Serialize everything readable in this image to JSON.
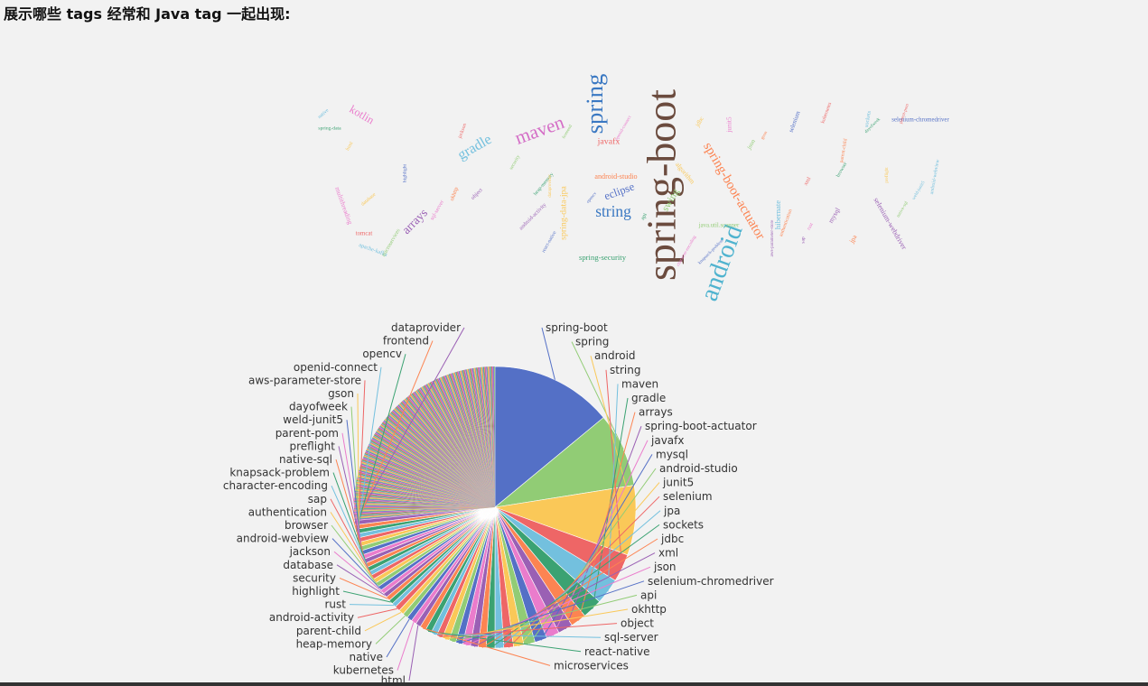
{
  "heading": "展示哪些 tags 经常和 Java tag 一起出现:",
  "palette": [
    "#5470c6",
    "#91cc75",
    "#fac858",
    "#ee6666",
    "#73c0de",
    "#3ba272",
    "#fc8452",
    "#9a60b4",
    "#ea7ccc"
  ],
  "chart_data": [
    {
      "type": "wordcloud",
      "title": "",
      "words": [
        {
          "text": "spring-boot",
          "weight": 100,
          "rot": -90
        },
        {
          "text": "android",
          "weight": 62,
          "rot": -70
        },
        {
          "text": "spring",
          "weight": 58,
          "rot": -90
        },
        {
          "text": "maven",
          "weight": 34,
          "rot": -20
        },
        {
          "text": "gradle",
          "weight": 26,
          "rot": -30
        },
        {
          "text": "string",
          "weight": 28,
          "rot": 0
        },
        {
          "text": "spring-boot-actuator",
          "weight": 24,
          "rot": 60
        },
        {
          "text": "arrays",
          "weight": 22,
          "rot": -45
        },
        {
          "text": "kotlin",
          "weight": 20,
          "rot": 30
        },
        {
          "text": "eclipse",
          "weight": 20,
          "rot": -20
        },
        {
          "text": "swing",
          "weight": 18,
          "rot": -60
        },
        {
          "text": "spring-data-jpa",
          "weight": 16,
          "rot": -90
        },
        {
          "text": "javafx",
          "weight": 16,
          "rot": 0
        },
        {
          "text": "hibernate",
          "weight": 14,
          "rot": -90
        },
        {
          "text": "spring-security",
          "weight": 14,
          "rot": 0
        },
        {
          "text": "android-studio",
          "weight": 13,
          "rot": 0
        },
        {
          "text": "selenium-webdriver",
          "weight": 13,
          "rot": 60
        },
        {
          "text": "multithreading",
          "weight": 12,
          "rot": 70
        },
        {
          "text": "selenium-chromedriver",
          "weight": 11,
          "rot": 0
        },
        {
          "text": "java.util.scanner",
          "weight": 11,
          "rot": 0
        },
        {
          "text": "algorithm",
          "weight": 12,
          "rot": 50
        },
        {
          "text": "tomcat",
          "weight": 11,
          "rot": 0
        },
        {
          "text": "apache-kafka",
          "weight": 10,
          "rot": 20
        },
        {
          "text": "spring-data",
          "weight": 9,
          "rot": 0
        },
        {
          "text": "jpa",
          "weight": 12,
          "rot": -60
        },
        {
          "text": "mysql",
          "weight": 12,
          "rot": -60
        },
        {
          "text": "junit5",
          "weight": 12,
          "rot": -90
        },
        {
          "text": "selenium",
          "weight": 11,
          "rot": -70
        },
        {
          "text": "json",
          "weight": 11,
          "rot": -60
        },
        {
          "text": "jdbc",
          "weight": 11,
          "rot": -60
        },
        {
          "text": "xml",
          "weight": 10,
          "rot": -60
        },
        {
          "text": "sockets",
          "weight": 10,
          "rot": -80
        },
        {
          "text": "api",
          "weight": 10,
          "rot": -60
        },
        {
          "text": "okhttp",
          "weight": 10,
          "rot": -70
        },
        {
          "text": "object",
          "weight": 10,
          "rot": -45
        },
        {
          "text": "sql-server",
          "weight": 10,
          "rot": -60
        },
        {
          "text": "react-native",
          "weight": 9,
          "rot": -60
        },
        {
          "text": "microservices",
          "weight": 10,
          "rot": -60
        },
        {
          "text": "html",
          "weight": 9,
          "rot": -60
        },
        {
          "text": "kubernetes",
          "weight": 9,
          "rot": -70
        },
        {
          "text": "native",
          "weight": 9,
          "rot": -40
        },
        {
          "text": "heap-memory",
          "weight": 9,
          "rot": -50
        },
        {
          "text": "parent-child",
          "weight": 9,
          "rot": -80
        },
        {
          "text": "android-activity",
          "weight": 10,
          "rot": -45
        },
        {
          "text": "rust",
          "weight": 9,
          "rot": -60
        },
        {
          "text": "highlight",
          "weight": 9,
          "rot": -90
        },
        {
          "text": "security",
          "weight": 9,
          "rot": -60
        },
        {
          "text": "database",
          "weight": 9,
          "rot": -40
        },
        {
          "text": "jackson",
          "weight": 9,
          "rot": -70
        },
        {
          "text": "android-webview",
          "weight": 9,
          "rot": -80
        },
        {
          "text": "browser",
          "weight": 9,
          "rot": -60
        },
        {
          "text": "authentication",
          "weight": 9,
          "rot": -70
        },
        {
          "text": "sap",
          "weight": 9,
          "rot": -90
        },
        {
          "text": "character-encoding",
          "weight": 8,
          "rot": -60
        },
        {
          "text": "knapsack-problem",
          "weight": 8,
          "rot": -45
        },
        {
          "text": "native-sql",
          "weight": 8,
          "rot": -60
        },
        {
          "text": "preflight",
          "weight": 8,
          "rot": -90
        },
        {
          "text": "parent-pom",
          "weight": 8,
          "rot": -70
        },
        {
          "text": "weld-junit5",
          "weight": 8,
          "rot": -60
        },
        {
          "text": "dayofweek",
          "weight": 8,
          "rot": -45
        },
        {
          "text": "gson",
          "weight": 8,
          "rot": -60
        },
        {
          "text": "aws-parameter-store",
          "weight": 8,
          "rot": -90
        },
        {
          "text": "openid-connect",
          "weight": 8,
          "rot": -60
        },
        {
          "text": "opencv",
          "weight": 8,
          "rot": -50
        },
        {
          "text": "frontend",
          "weight": 8,
          "rot": -60
        },
        {
          "text": "dataprovider",
          "weight": 8,
          "rot": -90
        }
      ]
    },
    {
      "type": "pie",
      "title": "",
      "slices": [
        {
          "name": "spring-boot",
          "value": 14.0
        },
        {
          "name": "spring",
          "value": 8.5
        },
        {
          "name": "android",
          "value": 8.0
        },
        {
          "name": "string",
          "value": 3.2
        },
        {
          "name": "maven",
          "value": 3.0
        },
        {
          "name": "gradle",
          "value": 2.3
        },
        {
          "name": "arrays",
          "value": 1.8
        },
        {
          "name": "spring-boot-actuator",
          "value": 1.7
        },
        {
          "name": "javafx",
          "value": 1.5
        },
        {
          "name": "mysql",
          "value": 1.4
        },
        {
          "name": "android-studio",
          "value": 1.3
        },
        {
          "name": "junit5",
          "value": 1.2
        },
        {
          "name": "selenium",
          "value": 1.1
        },
        {
          "name": "jpa",
          "value": 1.0
        },
        {
          "name": "sockets",
          "value": 1.0
        },
        {
          "name": "jdbc",
          "value": 0.9
        },
        {
          "name": "xml",
          "value": 0.9
        },
        {
          "name": "json",
          "value": 0.9
        },
        {
          "name": "selenium-chromedriver",
          "value": 0.8
        },
        {
          "name": "api",
          "value": 0.8
        },
        {
          "name": "okhttp",
          "value": 0.8
        },
        {
          "name": "object",
          "value": 0.7
        },
        {
          "name": "sql-server",
          "value": 0.7
        },
        {
          "name": "react-native",
          "value": 0.7
        },
        {
          "name": "microservices",
          "value": 0.7
        },
        {
          "name": "html",
          "value": 0.6
        },
        {
          "name": "kubernetes",
          "value": 0.6
        },
        {
          "name": "native",
          "value": 0.6
        },
        {
          "name": "heap-memory",
          "value": 0.6
        },
        {
          "name": "parent-child",
          "value": 0.6
        },
        {
          "name": "android-activity",
          "value": 0.6
        },
        {
          "name": "rust",
          "value": 0.5
        },
        {
          "name": "highlight",
          "value": 0.5
        },
        {
          "name": "security",
          "value": 0.5
        },
        {
          "name": "database",
          "value": 0.5
        },
        {
          "name": "jackson",
          "value": 0.5
        },
        {
          "name": "android-webview",
          "value": 0.5
        },
        {
          "name": "browser",
          "value": 0.5
        },
        {
          "name": "authentication",
          "value": 0.5
        },
        {
          "name": "sap",
          "value": 0.5
        },
        {
          "name": "character-encoding",
          "value": 0.5
        },
        {
          "name": "knapsack-problem",
          "value": 0.5
        },
        {
          "name": "native-sql",
          "value": 0.5
        },
        {
          "name": "preflight",
          "value": 0.5
        },
        {
          "name": "parent-pom",
          "value": 0.5
        },
        {
          "name": "weld-junit5",
          "value": 0.5
        },
        {
          "name": "dayofweek",
          "value": 0.5
        },
        {
          "name": "gson",
          "value": 0.5
        },
        {
          "name": "aws-parameter-store",
          "value": 0.5
        },
        {
          "name": "openid-connect",
          "value": 0.5
        },
        {
          "name": "opencv",
          "value": 0.5
        },
        {
          "name": "frontend",
          "value": 0.5
        },
        {
          "name": "dataprovider",
          "value": 0.5
        }
      ],
      "unlabeled_small_slices": 300
    }
  ]
}
